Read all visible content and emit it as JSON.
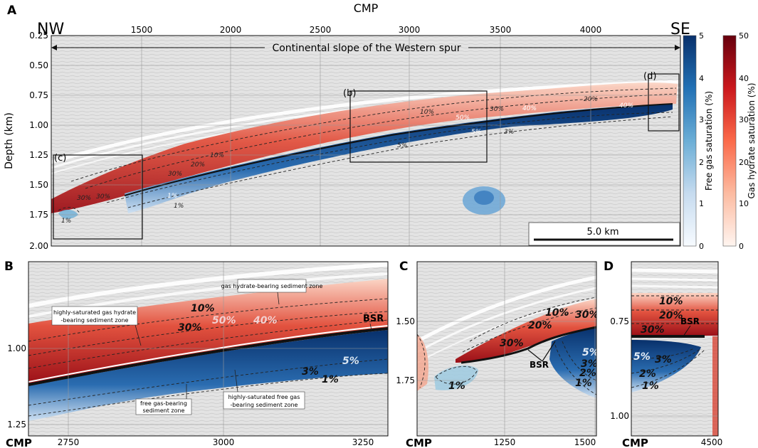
{
  "panel_a": {
    "letter": "A",
    "top_axis_title": "CMP",
    "left_end": "NW",
    "right_end": "SE",
    "x_ticks": [
      "1500",
      "2000",
      "2500",
      "3000",
      "3500",
      "4000"
    ],
    "y_ticks": [
      "0.25",
      "0.50",
      "0.75",
      "1.00",
      "1.25",
      "1.50",
      "1.75",
      "2.00"
    ],
    "y_title": "Depth (km)",
    "slope_label": "Continental slope of the Western spur",
    "box_labels": [
      "(b)",
      "(c)",
      "(d)"
    ],
    "scale_label": "5.0 km",
    "contours": [
      "10%",
      "20%",
      "30%",
      "40%",
      "50%",
      "30%",
      "10%",
      "20%",
      "30%",
      "40%",
      "30%",
      "5%",
      "3%",
      "1%",
      "5%",
      "1%",
      "1%"
    ]
  },
  "colorbars": {
    "gas": {
      "title": "Free gas saturation (%)",
      "ticks": [
        "5",
        "4",
        "3",
        "2",
        "1",
        "0"
      ],
      "color_max": "#08306b",
      "color_min": "#f7fbff"
    },
    "hydrate": {
      "title": "Gas hydrate saturation (%)",
      "ticks": [
        "50",
        "40",
        "30",
        "20",
        "10",
        "0"
      ],
      "color_max": "#67000d",
      "color_min": "#fff5f0"
    }
  },
  "panel_b": {
    "letter": "B",
    "y_ticks": [
      "1.00",
      "1.25"
    ],
    "x_ticks": [
      "2750",
      "3000",
      "3250"
    ],
    "x_title": "CMP",
    "annotations": {
      "gas_hydrate_zone": "gas hydrate-bearing sediment zone",
      "high_hydrate_line1": "highly-saturated gas hydrate",
      "high_hydrate_line2": "-bearing sediment zone",
      "free_gas_line1": "free gas-bearing",
      "free_gas_line2": "sediment zone",
      "high_gas_line1": "highly-saturated free gas",
      "high_gas_line2": "-bearing sediment zone",
      "bsr": "BSR"
    },
    "contours": [
      "10%",
      "30%",
      "50%",
      "40%",
      "5%",
      "3%",
      "1%"
    ]
  },
  "panel_c": {
    "letter": "C",
    "y_ticks": [
      "1.50",
      "1.75"
    ],
    "x_ticks": [
      "1250",
      "1500"
    ],
    "x_title": "CMP",
    "bsr": "BSR",
    "contours": [
      "10%",
      "30%",
      "20%",
      "30%",
      "1%",
      "5%",
      "3%",
      "2%",
      "1%"
    ]
  },
  "panel_d": {
    "letter": "D",
    "y_ticks": [
      "0.75",
      "1.00"
    ],
    "x_ticks": [
      "4500"
    ],
    "x_title": "CMP",
    "bsr": "BSR",
    "contours": [
      "10%",
      "20%",
      "30%",
      "5%",
      "3%",
      "2%",
      "1%"
    ]
  }
}
